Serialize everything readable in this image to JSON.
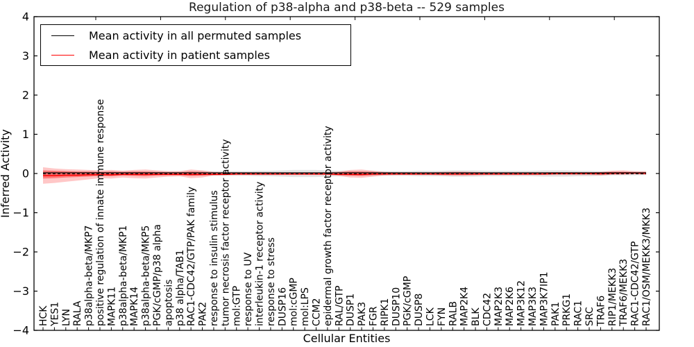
{
  "title": "Regulation of p38-alpha and p38-beta -- 529 samples",
  "legend": {
    "items": [
      {
        "label": "Mean activity in all permuted samples",
        "color": "#000000"
      },
      {
        "label": "Mean activity in patient samples",
        "color": "#ff0000"
      }
    ]
  },
  "axes": {
    "xlabel": "Cellular Entities",
    "ylabel": "Inferred Activity",
    "ylim": [
      -4,
      4
    ],
    "ytick_values": [
      4,
      3,
      2,
      1,
      0,
      -1,
      -2,
      -3,
      -4
    ],
    "ytick_labels": [
      "4",
      "3",
      "2",
      "1",
      "0",
      "−1",
      "−2",
      "−3",
      "−4"
    ]
  },
  "chart_data": {
    "type": "line",
    "title": "Regulation of p38-alpha and p38-beta -- 529 samples",
    "xlabel": "Cellular Entities",
    "ylabel": "Inferred Activity",
    "ylim": [
      -4,
      4
    ],
    "n_samples": 529,
    "grid": false,
    "legend_position": "upper left",
    "zero_line": {
      "value": 0,
      "style": "dashed",
      "color": "#000000"
    },
    "categories": [
      "HCK",
      "YES1",
      "LYN",
      "RALA",
      "p38alpha-beta/MKP7",
      "positive regulation of innate immune response",
      "MAPK11",
      "p38alpha-beta/MKP1",
      "MAPK14",
      "p38alpha-beta/MKP5",
      "PGK/cGMP/p38 alpha",
      "apoptosis",
      "p38 alpha/TAB1",
      "RAC1-CDC42/GTP/PAK family",
      "PAK2",
      "response to insulin stimulus",
      "tumor necrosis factor receptor activity",
      "mol:GTP",
      "response to UV",
      "interleukin-1 receptor activity",
      "response to stress",
      "DUSP16",
      "mol:cGMP",
      "mol:LPS",
      "CCM2",
      "epidermal growth factor receptor activity",
      "RAL/GTP",
      "DUSP1",
      "PAK3",
      "FGR",
      "RIPK1",
      "DUSP10",
      "PGK/cGMP",
      "DUSP8",
      "LCK",
      "FYN",
      "RALB",
      "MAP2K4",
      "BLK",
      "CDC42",
      "MAP2K3",
      "MAP2K6",
      "MAP3K12",
      "MAP3K3",
      "MAP3K7IP1",
      "PAK1",
      "PRKG1",
      "RAC1",
      "SRC",
      "TRAF6",
      "RIP1/MEKK3",
      "TRAF6/MEKK3",
      "RAC1-CDC42/GTP",
      "RAC1/OSM/MEKK3/MKK3"
    ],
    "series": [
      {
        "name": "Mean activity in all permuted samples",
        "color": "#000000",
        "style": "solid",
        "values": [
          0,
          0,
          0,
          0,
          0,
          0,
          0,
          0,
          0,
          0,
          0,
          0,
          0,
          0,
          0,
          0,
          0,
          0,
          0,
          0,
          0,
          0,
          0,
          0,
          0,
          0,
          0,
          0,
          0,
          0,
          0,
          0,
          0,
          0,
          0,
          0,
          0,
          0,
          0,
          0,
          0,
          0,
          0,
          0,
          0,
          0,
          0,
          0,
          0,
          0,
          0,
          0,
          0,
          0
        ]
      },
      {
        "name": "Mean activity in patient samples",
        "color": "#ff0000",
        "style": "solid",
        "values": [
          -0.04,
          -0.04,
          -0.03,
          -0.03,
          -0.02,
          -0.02,
          -0.02,
          -0.01,
          -0.01,
          -0.01,
          -0.01,
          -0.01,
          -0.01,
          -0.01,
          -0.01,
          -0.01,
          -0.01,
          0,
          0,
          0,
          0,
          0,
          0,
          0,
          0,
          0,
          -0.01,
          -0.01,
          -0.01,
          0,
          0,
          0,
          0,
          0,
          0,
          0,
          0,
          0,
          0,
          0,
          0,
          0,
          0,
          0,
          0,
          0.01,
          0.01,
          0.01,
          0.01,
          0.01,
          0.02,
          0.03,
          0.03,
          0.02
        ]
      }
    ],
    "bands": [
      {
        "name": "permuted-sample-spread",
        "color": "rgba(0,0,0,0.10)",
        "upper": [
          0.05,
          0.05,
          0.05,
          0.05,
          0.05,
          0.05,
          0.05,
          0.05,
          0.05,
          0.05,
          0.05,
          0.05,
          0.05,
          0.06,
          0.06,
          0.06,
          0.06,
          0.06,
          0.06,
          0.07,
          0.07,
          0.08,
          0.09,
          0.09,
          0.09,
          0.08,
          0.07,
          0.06,
          0.06,
          0.06,
          0.06,
          0.06,
          0.06,
          0.07,
          0.07,
          0.07,
          0.08,
          0.08,
          0.08,
          0.07,
          0.07,
          0.07,
          0.07,
          0.07,
          0.08,
          0.08,
          0.08,
          0.07,
          0.07,
          0.06,
          0.05,
          0.05,
          0.05,
          0.04
        ],
        "lower": [
          -0.05,
          -0.05,
          -0.05,
          -0.05,
          -0.05,
          -0.05,
          -0.05,
          -0.05,
          -0.05,
          -0.05,
          -0.05,
          -0.05,
          -0.05,
          -0.06,
          -0.06,
          -0.06,
          -0.06,
          -0.06,
          -0.06,
          -0.07,
          -0.07,
          -0.08,
          -0.09,
          -0.09,
          -0.09,
          -0.08,
          -0.07,
          -0.06,
          -0.06,
          -0.06,
          -0.06,
          -0.06,
          -0.06,
          -0.07,
          -0.07,
          -0.07,
          -0.08,
          -0.08,
          -0.08,
          -0.07,
          -0.07,
          -0.07,
          -0.07,
          -0.07,
          -0.08,
          -0.08,
          -0.08,
          -0.07,
          -0.07,
          -0.06,
          -0.05,
          -0.05,
          -0.05,
          -0.04
        ]
      },
      {
        "name": "patient-sample-spread-outer",
        "color": "rgba(255,0,0,0.22)",
        "upper": [
          0.16,
          0.13,
          0.11,
          0.1,
          0.09,
          0.08,
          0.09,
          0.07,
          0.09,
          0.1,
          0.08,
          0.06,
          0.06,
          0.1,
          0.08,
          0.04,
          0.03,
          0.03,
          0.03,
          0.03,
          0.03,
          0.03,
          0.03,
          0.03,
          0.03,
          0.03,
          0.05,
          0.09,
          0.1,
          0.07,
          0.04,
          0.03,
          0.03,
          0.03,
          0.03,
          0.04,
          0.05,
          0.05,
          0.04,
          0.03,
          0.03,
          0.03,
          0.03,
          0.03,
          0.03,
          0.03,
          0.03,
          0.03,
          0.03,
          0.04,
          0.07,
          0.08,
          0.06,
          0.06
        ],
        "lower": [
          -0.26,
          -0.24,
          -0.21,
          -0.18,
          -0.15,
          -0.12,
          -0.13,
          -0.1,
          -0.12,
          -0.13,
          -0.1,
          -0.08,
          -0.07,
          -0.12,
          -0.1,
          -0.05,
          -0.04,
          -0.04,
          -0.04,
          -0.04,
          -0.04,
          -0.04,
          -0.04,
          -0.04,
          -0.04,
          -0.04,
          -0.06,
          -0.1,
          -0.11,
          -0.08,
          -0.05,
          -0.04,
          -0.04,
          -0.04,
          -0.04,
          -0.05,
          -0.06,
          -0.06,
          -0.05,
          -0.04,
          -0.04,
          -0.04,
          -0.04,
          -0.04,
          -0.04,
          -0.04,
          -0.04,
          -0.04,
          -0.04,
          -0.05,
          -0.03,
          -0.03,
          -0.02,
          -0.03
        ]
      },
      {
        "name": "patient-sample-spread-inner",
        "color": "rgba(255,0,0,0.38)",
        "upper": [
          0.08,
          0.07,
          0.06,
          0.05,
          0.05,
          0.04,
          0.05,
          0.04,
          0.05,
          0.05,
          0.04,
          0.03,
          0.03,
          0.05,
          0.04,
          0.02,
          0.02,
          0.02,
          0.02,
          0.02,
          0.02,
          0.02,
          0.02,
          0.02,
          0.02,
          0.02,
          0.03,
          0.05,
          0.05,
          0.04,
          0.02,
          0.02,
          0.02,
          0.02,
          0.02,
          0.02,
          0.03,
          0.03,
          0.02,
          0.02,
          0.02,
          0.02,
          0.02,
          0.02,
          0.02,
          0.02,
          0.02,
          0.02,
          0.02,
          0.02,
          0.04,
          0.04,
          0.03,
          0.03
        ],
        "lower": [
          -0.13,
          -0.12,
          -0.1,
          -0.09,
          -0.08,
          -0.06,
          -0.07,
          -0.05,
          -0.06,
          -0.07,
          -0.05,
          -0.04,
          -0.04,
          -0.06,
          -0.05,
          -0.03,
          -0.02,
          -0.02,
          -0.02,
          -0.02,
          -0.02,
          -0.02,
          -0.02,
          -0.02,
          -0.02,
          -0.02,
          -0.03,
          -0.05,
          -0.06,
          -0.04,
          -0.03,
          -0.02,
          -0.02,
          -0.02,
          -0.02,
          -0.03,
          -0.03,
          -0.03,
          -0.03,
          -0.02,
          -0.02,
          -0.02,
          -0.02,
          -0.02,
          -0.02,
          -0.02,
          -0.02,
          -0.02,
          -0.02,
          -0.03,
          -0.02,
          -0.02,
          -0.01,
          -0.02
        ]
      }
    ]
  }
}
